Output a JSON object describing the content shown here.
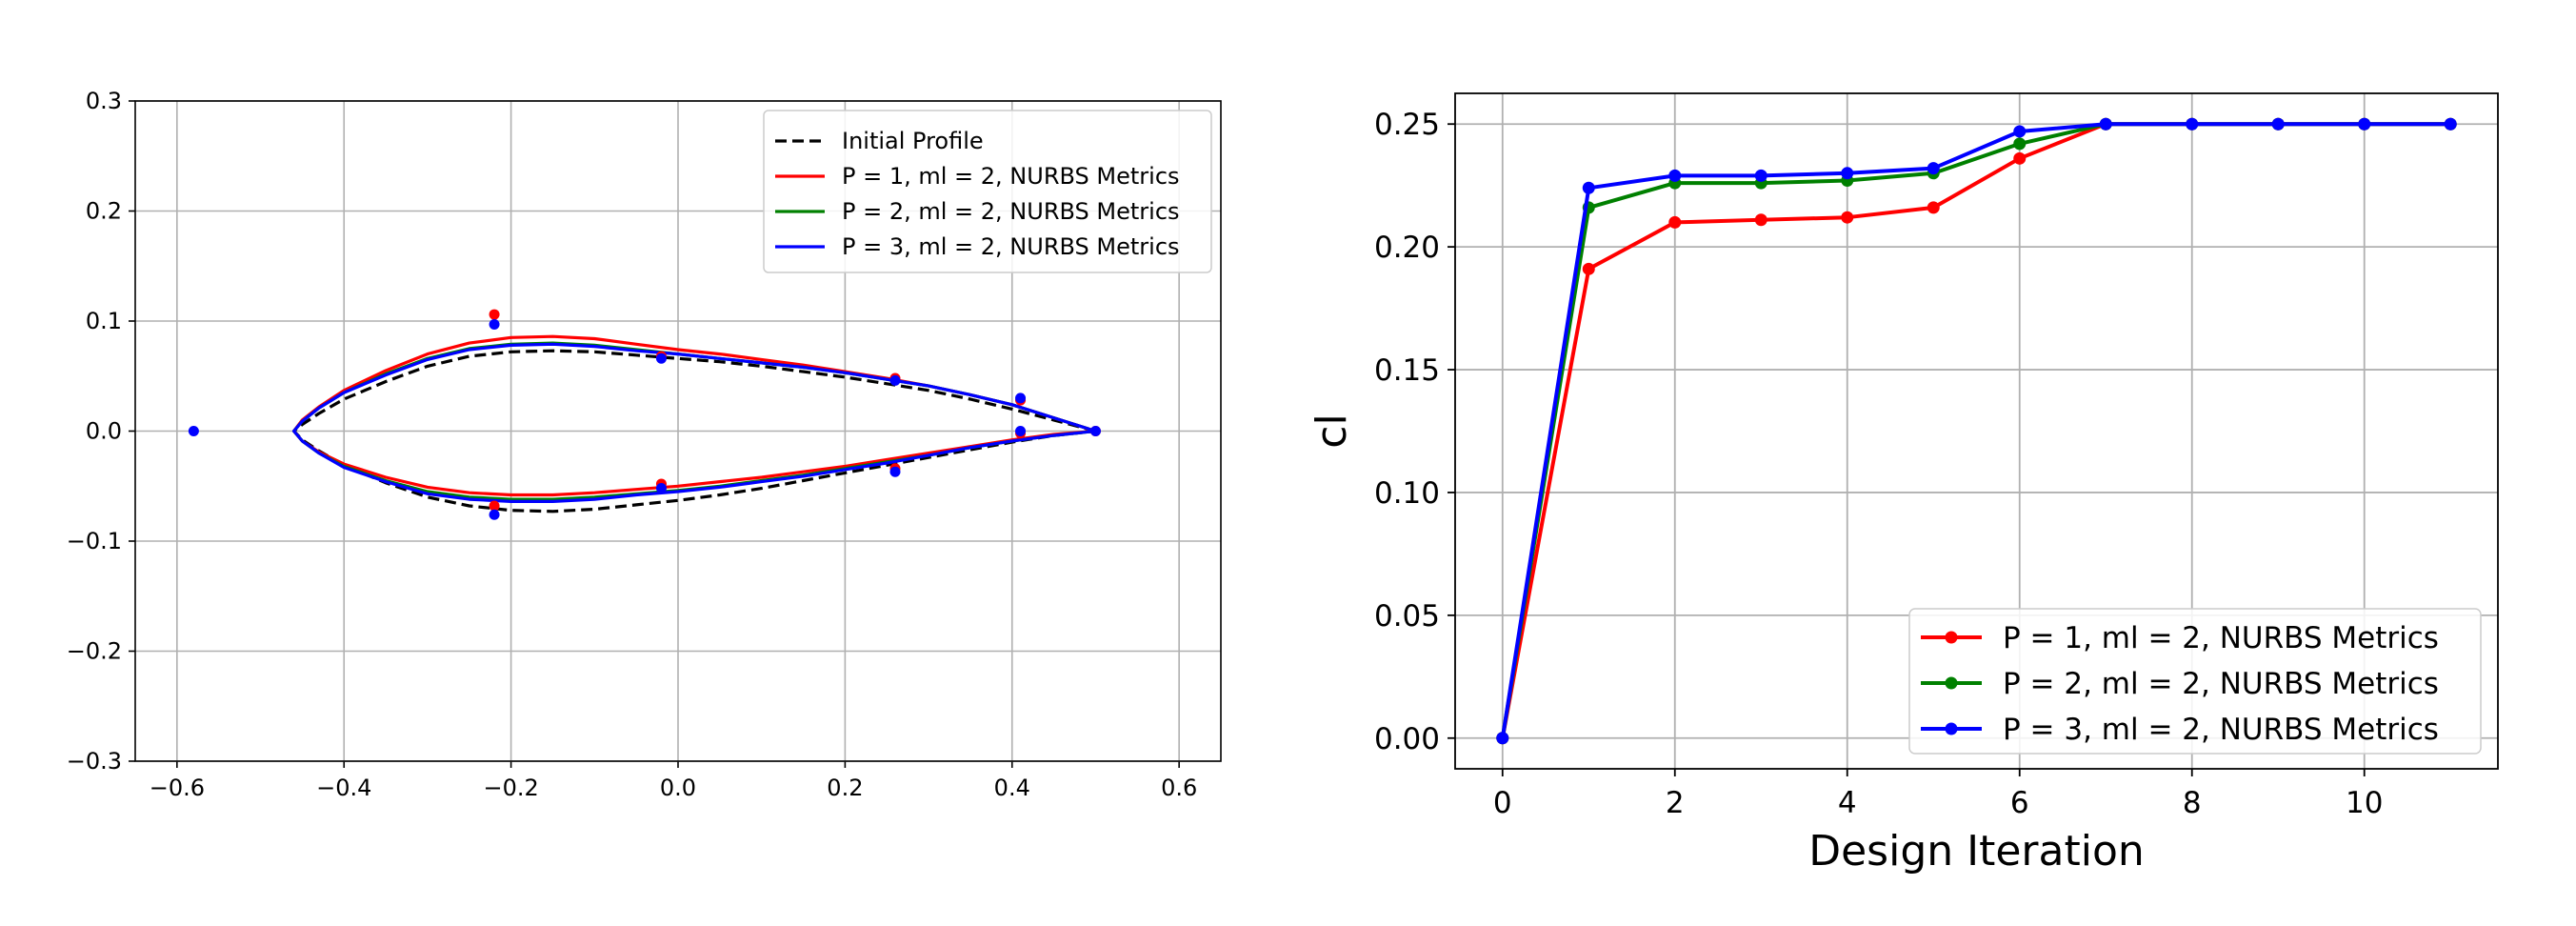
{
  "chart_data": [
    {
      "type": "line",
      "title": "",
      "xlabel": "",
      "ylabel": "",
      "xlim": [
        -0.65,
        0.65
      ],
      "ylim": [
        -0.3,
        0.3
      ],
      "xticks": [
        -0.6,
        -0.4,
        -0.2,
        0.0,
        0.2,
        0.4,
        0.6
      ],
      "xtick_labels": [
        "−0.6",
        "−0.4",
        "−0.2",
        "0.0",
        "0.2",
        "0.4",
        "0.6"
      ],
      "yticks": [
        -0.3,
        -0.2,
        -0.1,
        0.0,
        0.1,
        0.2,
        0.3
      ],
      "ytick_labels": [
        "−0.3",
        "−0.2",
        "−0.1",
        "0.0",
        "0.1",
        "0.2",
        "0.3"
      ],
      "grid": true,
      "legend_position": "top-right",
      "series": [
        {
          "name": "Initial Profile",
          "color": "#000000",
          "dashed": true,
          "x": [
            0.5,
            0.45,
            0.4,
            0.35,
            0.3,
            0.25,
            0.2,
            0.15,
            0.1,
            0.05,
            0.0,
            -0.05,
            -0.1,
            -0.15,
            -0.2,
            -0.25,
            -0.3,
            -0.35,
            -0.4,
            -0.43,
            -0.45,
            -0.46,
            -0.45,
            -0.43,
            -0.4,
            -0.35,
            -0.3,
            -0.25,
            -0.2,
            -0.15,
            -0.1,
            -0.05,
            0.0,
            0.05,
            0.1,
            0.15,
            0.2,
            0.25,
            0.3,
            0.35,
            0.4,
            0.45,
            0.5
          ],
          "y": [
            0.0,
            0.01,
            0.02,
            0.029,
            0.037,
            0.043,
            0.049,
            0.054,
            0.059,
            0.063,
            0.066,
            0.069,
            0.072,
            0.073,
            0.072,
            0.068,
            0.059,
            0.045,
            0.029,
            0.016,
            0.006,
            0.0,
            -0.008,
            -0.018,
            -0.031,
            -0.047,
            -0.06,
            -0.068,
            -0.072,
            -0.073,
            -0.071,
            -0.067,
            -0.063,
            -0.058,
            -0.052,
            -0.045,
            -0.038,
            -0.031,
            -0.024,
            -0.017,
            -0.01,
            -0.004,
            0.0
          ]
        },
        {
          "name": "P = 1, ml = 2, NURBS Metrics",
          "color": "#ff0000",
          "dashed": false,
          "x": [
            0.5,
            0.45,
            0.4,
            0.35,
            0.3,
            0.25,
            0.2,
            0.15,
            0.1,
            0.05,
            0.0,
            -0.05,
            -0.1,
            -0.15,
            -0.2,
            -0.25,
            -0.3,
            -0.35,
            -0.4,
            -0.43,
            -0.45,
            -0.46,
            -0.45,
            -0.43,
            -0.4,
            -0.35,
            -0.3,
            -0.25,
            -0.2,
            -0.15,
            -0.1,
            -0.05,
            0.0,
            0.05,
            0.1,
            0.15,
            0.2,
            0.25,
            0.3,
            0.35,
            0.4,
            0.45,
            0.5
          ],
          "y": [
            0.0,
            0.012,
            0.024,
            0.033,
            0.041,
            0.048,
            0.054,
            0.06,
            0.065,
            0.07,
            0.074,
            0.079,
            0.084,
            0.086,
            0.085,
            0.08,
            0.07,
            0.055,
            0.037,
            0.022,
            0.01,
            0.0,
            -0.009,
            -0.019,
            -0.03,
            -0.042,
            -0.051,
            -0.056,
            -0.058,
            -0.058,
            -0.056,
            -0.053,
            -0.05,
            -0.046,
            -0.042,
            -0.037,
            -0.032,
            -0.026,
            -0.02,
            -0.014,
            -0.008,
            -0.003,
            0.0
          ]
        },
        {
          "name": "P = 2, ml = 2, NURBS Metrics",
          "color": "#008000",
          "dashed": false,
          "x": [
            0.5,
            0.45,
            0.4,
            0.35,
            0.3,
            0.25,
            0.2,
            0.15,
            0.1,
            0.05,
            0.0,
            -0.05,
            -0.1,
            -0.15,
            -0.2,
            -0.25,
            -0.3,
            -0.35,
            -0.4,
            -0.43,
            -0.45,
            -0.46,
            -0.45,
            -0.43,
            -0.4,
            -0.35,
            -0.3,
            -0.25,
            -0.2,
            -0.15,
            -0.1,
            -0.05,
            0.0,
            0.05,
            0.1,
            0.15,
            0.2,
            0.25,
            0.3,
            0.35,
            0.4,
            0.45,
            0.5
          ],
          "y": [
            0.0,
            0.012,
            0.024,
            0.033,
            0.041,
            0.047,
            0.053,
            0.058,
            0.062,
            0.066,
            0.07,
            0.074,
            0.078,
            0.08,
            0.079,
            0.075,
            0.066,
            0.052,
            0.035,
            0.021,
            0.009,
            0.0,
            -0.009,
            -0.02,
            -0.032,
            -0.045,
            -0.055,
            -0.06,
            -0.062,
            -0.062,
            -0.06,
            -0.057,
            -0.054,
            -0.05,
            -0.045,
            -0.04,
            -0.034,
            -0.028,
            -0.022,
            -0.015,
            -0.009,
            -0.004,
            0.0
          ]
        },
        {
          "name": "P = 3, ml = 2, NURBS Metrics",
          "color": "#0000ff",
          "dashed": false,
          "x": [
            0.5,
            0.45,
            0.4,
            0.35,
            0.3,
            0.25,
            0.2,
            0.15,
            0.1,
            0.05,
            0.0,
            -0.05,
            -0.1,
            -0.15,
            -0.2,
            -0.25,
            -0.3,
            -0.35,
            -0.4,
            -0.43,
            -0.45,
            -0.46,
            -0.45,
            -0.43,
            -0.4,
            -0.35,
            -0.3,
            -0.25,
            -0.2,
            -0.15,
            -0.1,
            -0.05,
            0.0,
            0.05,
            0.1,
            0.15,
            0.2,
            0.25,
            0.3,
            0.35,
            0.4,
            0.45,
            0.5
          ],
          "y": [
            0.0,
            0.012,
            0.024,
            0.033,
            0.041,
            0.047,
            0.053,
            0.058,
            0.062,
            0.066,
            0.07,
            0.073,
            0.077,
            0.079,
            0.078,
            0.074,
            0.065,
            0.051,
            0.035,
            0.021,
            0.009,
            0.0,
            -0.009,
            -0.02,
            -0.033,
            -0.046,
            -0.057,
            -0.062,
            -0.064,
            -0.064,
            -0.062,
            -0.058,
            -0.055,
            -0.051,
            -0.046,
            -0.041,
            -0.035,
            -0.029,
            -0.022,
            -0.015,
            -0.009,
            -0.004,
            0.0
          ]
        }
      ],
      "control_points": [
        {
          "color": "#ff0000",
          "points": [
            [
              -0.22,
              0.106
            ],
            [
              -0.02,
              0.068
            ],
            [
              0.26,
              0.048
            ],
            [
              0.41,
              0.028
            ],
            [
              0.5,
              0.0
            ],
            [
              -0.22,
              -0.068
            ],
            [
              -0.02,
              -0.048
            ],
            [
              0.26,
              -0.034
            ],
            [
              0.41,
              -0.002
            ]
          ]
        },
        {
          "color": "#0000ff",
          "points": [
            [
              -0.58,
              0.0
            ],
            [
              -0.22,
              0.097
            ],
            [
              -0.02,
              0.066
            ],
            [
              0.26,
              0.046
            ],
            [
              0.41,
              0.03
            ],
            [
              0.5,
              0.0
            ],
            [
              -0.22,
              -0.076
            ],
            [
              -0.02,
              -0.052
            ],
            [
              0.26,
              -0.037
            ],
            [
              0.41,
              0.0
            ]
          ]
        }
      ]
    },
    {
      "type": "line",
      "title": "",
      "xlabel": "Design Iteration",
      "ylabel": "cl",
      "xlim": [
        -0.55,
        11.55
      ],
      "ylim": [
        -0.0125,
        0.2625
      ],
      "xticks": [
        0,
        2,
        4,
        6,
        8,
        10
      ],
      "xtick_labels": [
        "0",
        "2",
        "4",
        "6",
        "8",
        "10"
      ],
      "yticks": [
        0.0,
        0.05,
        0.1,
        0.15,
        0.2,
        0.25
      ],
      "ytick_labels": [
        "0.00",
        "0.05",
        "0.10",
        "0.15",
        "0.20",
        "0.25"
      ],
      "grid": true,
      "legend_position": "bottom-right",
      "series": [
        {
          "name": "P = 1, ml = 2, NURBS Metrics",
          "color": "#ff0000",
          "x": [
            0,
            1,
            2,
            3,
            4,
            5,
            6,
            7,
            8,
            9,
            10,
            11
          ],
          "y": [
            0.0,
            0.191,
            0.21,
            0.211,
            0.212,
            0.216,
            0.236,
            0.25,
            0.25,
            0.25,
            0.25,
            0.25
          ]
        },
        {
          "name": "P = 2, ml = 2, NURBS Metrics",
          "color": "#008000",
          "x": [
            0,
            1,
            2,
            3,
            4,
            5,
            6,
            7,
            8,
            9,
            10,
            11
          ],
          "y": [
            0.0,
            0.216,
            0.226,
            0.226,
            0.227,
            0.23,
            0.242,
            0.25,
            0.25,
            0.25,
            0.25,
            0.25
          ]
        },
        {
          "name": "P = 3, ml = 2, NURBS Metrics",
          "color": "#0000ff",
          "x": [
            0,
            1,
            2,
            3,
            4,
            5,
            6,
            7,
            8,
            9,
            10,
            11
          ],
          "y": [
            0.0,
            0.224,
            0.229,
            0.229,
            0.23,
            0.232,
            0.247,
            0.25,
            0.25,
            0.25,
            0.25,
            0.25
          ]
        }
      ]
    }
  ]
}
